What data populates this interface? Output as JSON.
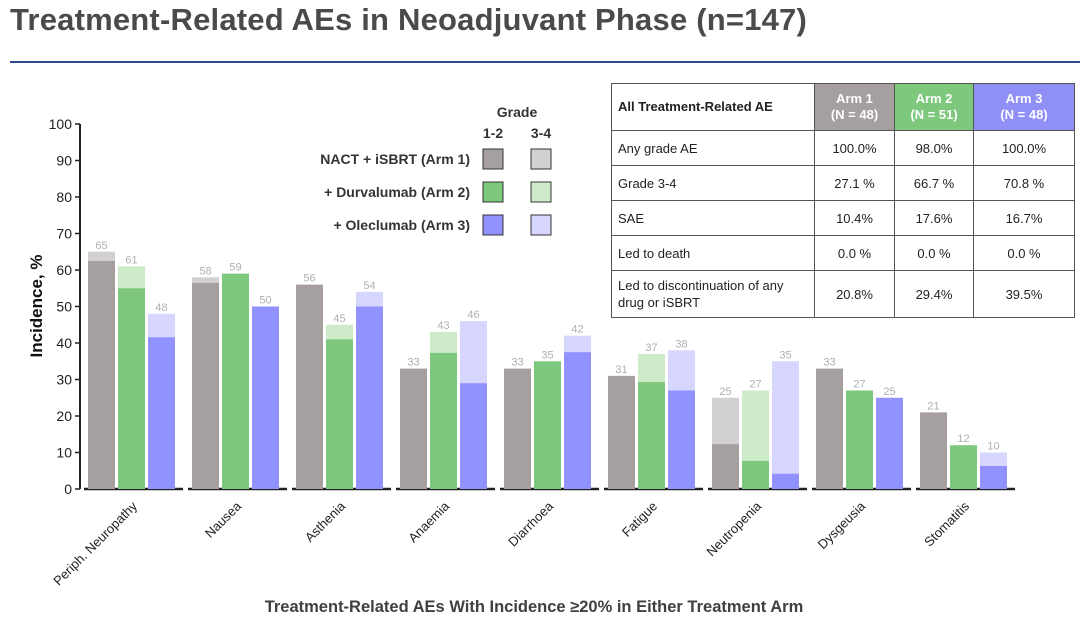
{
  "title": "Treatment-Related AEs in Neoadjuvant Phase (n=147)",
  "colors": {
    "arm1_g12": "#a59f9f",
    "arm1_g34": "#d2d0d0",
    "arm2_g12": "#7dc87d",
    "arm2_g34": "#cdebc8",
    "arm3_g12": "#9292ff",
    "arm3_g34": "#d6d6fe",
    "accent_rule": "#2e4a8a",
    "header_arm1": "#a59f9f",
    "header_arm2": "#7dc87d",
    "header_arm3": "#8f8ff5"
  },
  "legend": {
    "grade_title": "Grade",
    "col_12": "1-2",
    "col_34": "3-4",
    "entries": [
      "NACT + iSBRT (Arm 1)",
      "+ Durvalumab (Arm 2)",
      "+ Oleclumab (Arm 3)"
    ]
  },
  "table": {
    "header": [
      "All Treatment-Related AE",
      "Arm 1\n(N = 48)",
      "Arm 2\n(N = 51)",
      "Arm 3\n(N = 48)"
    ],
    "rows": [
      [
        "Any grade AE",
        "100.0%",
        "98.0%",
        "100.0%"
      ],
      [
        "Grade 3-4",
        "27.1 %",
        "66.7 %",
        "70.8 %"
      ],
      [
        "SAE",
        "10.4%",
        "17.6%",
        "16.7%"
      ],
      [
        "Led to death",
        "0.0 %",
        "0.0 %",
        "0.0 %"
      ],
      [
        "Led to discontinuation of any drug or iSBRT",
        "20.8%",
        "29.4%",
        "39.5%"
      ]
    ]
  },
  "chart_data": {
    "type": "bar",
    "stacked": true,
    "xlabel": "Treatment-Related AEs With Incidence ≥20% in Either Treatment Arm",
    "ylabel": "Incidence, %",
    "ylim": [
      0,
      100
    ],
    "yticks": [
      0,
      10,
      20,
      30,
      40,
      50,
      60,
      70,
      80,
      90,
      100
    ],
    "grid": false,
    "legend_position": "top-center",
    "categories": [
      "Periph. Neuropathy",
      "Nausea",
      "Asthenia",
      "Anaemia",
      "Diarrhoea",
      "Fatigue",
      "Neutropenia",
      "Dysgeusia",
      "Stomatitis"
    ],
    "series": [
      {
        "name": "NACT + iSBRT (Arm 1)",
        "total": [
          65,
          58,
          56,
          33,
          33,
          31,
          25,
          33,
          21
        ],
        "grade_1_2": [
          62.5,
          56.5,
          56,
          33,
          33,
          31,
          12.3,
          33,
          21
        ]
      },
      {
        "name": "+ Durvalumab (Arm 2)",
        "total": [
          61,
          59,
          45,
          43,
          35,
          37,
          27,
          27,
          12
        ],
        "grade_1_2": [
          55,
          59,
          41,
          37.3,
          35,
          29.3,
          7.7,
          27,
          12
        ]
      },
      {
        "name": "+ Oleclumab (Arm 3)",
        "total": [
          48,
          50,
          54,
          46,
          42,
          38,
          35,
          25,
          10
        ],
        "grade_1_2": [
          41.6,
          50,
          50,
          29,
          37.5,
          27,
          4.2,
          25,
          6.3
        ]
      }
    ]
  }
}
